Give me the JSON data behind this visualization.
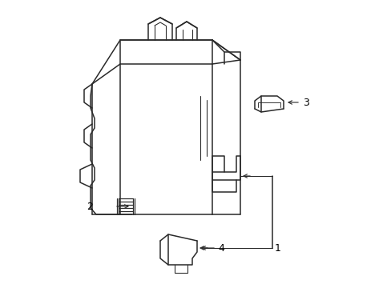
{
  "background_color": "#ffffff",
  "line_color": "#2a2a2a",
  "line_width": 1.1,
  "label_color": "#000000",
  "label_fontsize": 9,
  "figsize": [
    4.89,
    3.6
  ],
  "dpi": 100
}
